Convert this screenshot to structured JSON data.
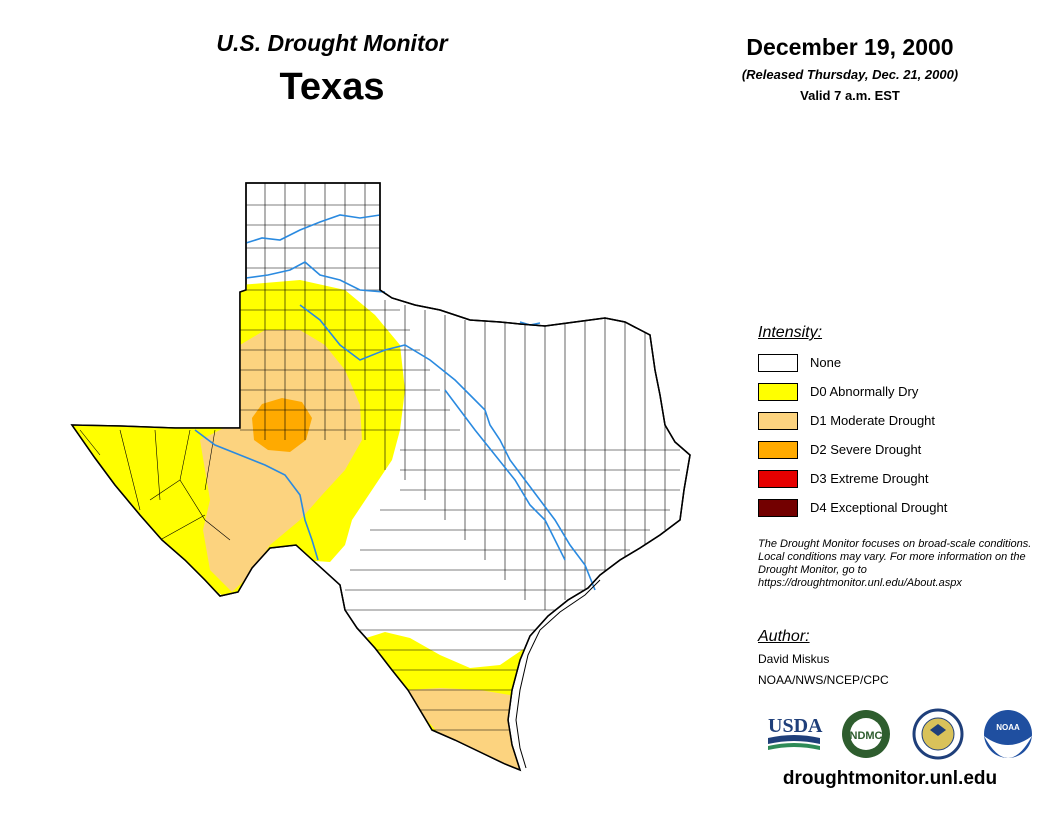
{
  "header": {
    "subtitle": "U.S. Drought Monitor",
    "state": "Texas",
    "date": "December 19, 2000",
    "release": "(Released Thursday, Dec. 21, 2000)",
    "valid": "Valid 7 a.m. EST"
  },
  "legend": {
    "title": "Intensity:",
    "items": [
      {
        "label": "None",
        "color": "#ffffff"
      },
      {
        "label": "D0 Abnormally Dry",
        "color": "#ffff00"
      },
      {
        "label": "D1 Moderate Drought",
        "color": "#fcd37f"
      },
      {
        "label": "D2 Severe Drought",
        "color": "#ffaa00"
      },
      {
        "label": "D3 Extreme Drought",
        "color": "#e60000"
      },
      {
        "label": "D4 Exceptional Drought",
        "color": "#730000"
      }
    ]
  },
  "note": "The Drought Monitor focuses on broad-scale conditions. Local conditions may vary. For more information on the Drought Monitor, go to https://droughtmonitor.unl.edu/About.aspx",
  "author": {
    "title": "Author:",
    "name": "David Miskus",
    "org": "NOAA/NWS/NCEP/CPC"
  },
  "logos": {
    "usda": "USDA",
    "ndmc": "NDMC",
    "noaa": "NOAA"
  },
  "website": "droughtmonitor.unl.edu",
  "colors": {
    "river": "#2a8ae0",
    "border": "#000000"
  }
}
